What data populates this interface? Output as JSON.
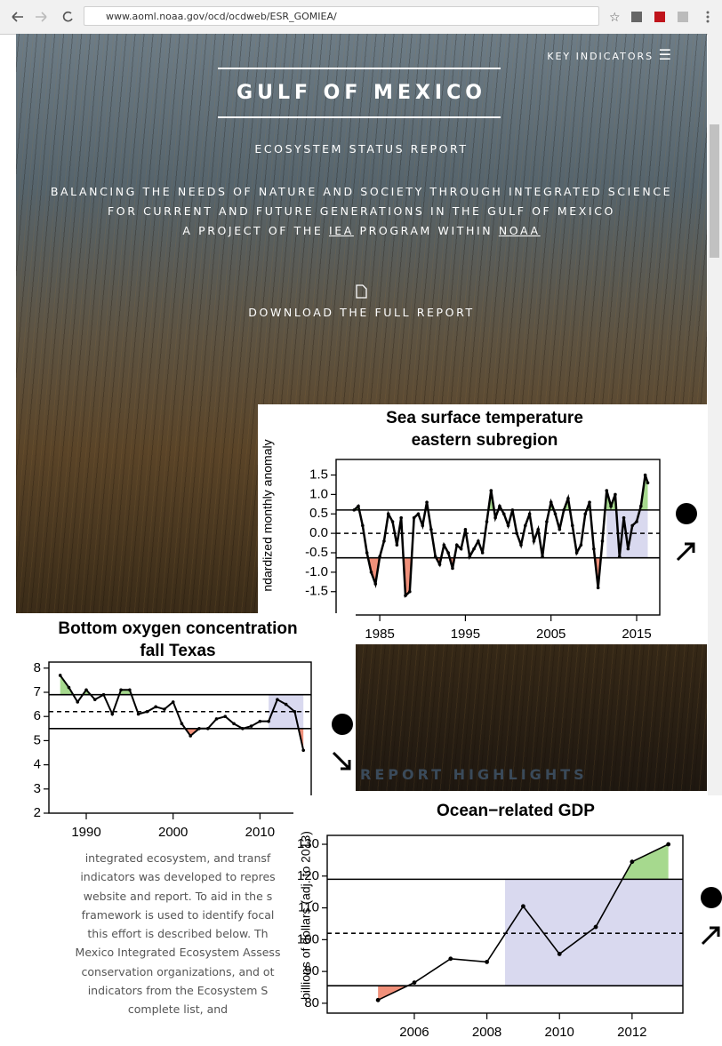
{
  "browser": {
    "url": "www.aoml.noaa.gov/ocd/ocdweb/ESR_GOMIEA/"
  },
  "header": {
    "menu": "KEY INDICATORS",
    "title": "GULF OF MEXICO",
    "subtitle": "ECOSYSTEM STATUS REPORT",
    "tagline": [
      "BALANCING THE NEEDS OF NATURE AND SOCIETY THROUGH INTEGRATED SCIENCE",
      "FOR CURRENT AND FUTURE GENERATIONS IN THE GULF OF MEXICO"
    ],
    "project": {
      "before": "A PROJECT OF THE",
      "iea": "IEA",
      "middle": "PROGRAM WITHIN",
      "noaa": "NOAA"
    },
    "download": "DOWNLOAD THE FULL REPORT"
  },
  "highlights": {
    "title": "REPORT HIGHLIGHTS",
    "lines": [
      "integrated ecosystem, and transf",
      "indicators was developed to repres",
      "website and report. To aid in the s",
      "framework is used to identify focal",
      "this effort is described below. Th",
      "Mexico Integrated Ecosystem Assess",
      "conservation organizations, and ot",
      "indicators from the Ecosystem S",
      "complete list, and"
    ]
  },
  "chart_data": [
    {
      "type": "line",
      "title": [
        "Sea surface temperature",
        "eastern subregion"
      ],
      "ylabel": "ndardized monthly anomaly",
      "x": [
        1982.0,
        1982.5,
        1983.0,
        1983.5,
        1984.0,
        1984.5,
        1985.0,
        1985.5,
        1986.0,
        1986.5,
        1987.0,
        1987.5,
        1988.0,
        1988.5,
        1989.0,
        1989.5,
        1990.0,
        1990.5,
        1991.0,
        1991.5,
        1992.0,
        1992.5,
        1993.0,
        1993.5,
        1994.0,
        1994.5,
        1995.0,
        1995.5,
        1996.0,
        1996.5,
        1997.0,
        1997.5,
        1998.0,
        1998.5,
        1999.0,
        1999.5,
        2000.0,
        2000.5,
        2001.0,
        2001.5,
        2002.0,
        2002.5,
        2003.0,
        2003.5,
        2004.0,
        2004.5,
        2005.0,
        2005.5,
        2006.0,
        2006.5,
        2007.0,
        2007.5,
        2008.0,
        2008.5,
        2009.0,
        2009.5,
        2010.0,
        2010.5,
        2011.0,
        2011.5,
        2012.0,
        2012.5,
        2013.0,
        2013.5,
        2014.0,
        2014.5,
        2015.0,
        2015.5,
        2016.0,
        2016.3
      ],
      "values": [
        0.6,
        0.7,
        0.2,
        -0.5,
        -1.0,
        -1.3,
        -0.6,
        -0.2,
        0.5,
        0.3,
        -0.3,
        0.4,
        -1.6,
        -1.5,
        0.4,
        0.5,
        0.2,
        0.8,
        0.1,
        -0.6,
        -0.8,
        -0.3,
        -0.5,
        -0.9,
        -0.3,
        -0.4,
        0.1,
        -0.6,
        -0.4,
        -0.2,
        -0.5,
        0.3,
        1.1,
        0.4,
        0.7,
        0.5,
        0.2,
        0.6,
        0.0,
        -0.3,
        0.2,
        0.5,
        -0.2,
        0.1,
        -0.6,
        0.3,
        0.8,
        0.5,
        0.1,
        0.6,
        0.9,
        0.2,
        -0.5,
        -0.3,
        0.5,
        0.8,
        -0.4,
        -1.4,
        -0.2,
        1.1,
        0.7,
        1.0,
        -0.6,
        0.4,
        -0.4,
        0.2,
        0.3,
        0.7,
        1.5,
        1.3
      ],
      "xlim": [
        1979.9,
        2017.7
      ],
      "xticks": [
        1985,
        1995,
        2005,
        2015
      ],
      "ylim": [
        -2.1,
        1.9
      ],
      "yticks": [
        {
          "value": -1.5,
          "label": "-1.5"
        },
        {
          "value": -1,
          "label": "-1.0"
        },
        -0.5,
        {
          "value": 0,
          "label": "0.0"
        },
        0.5,
        {
          "value": 1,
          "label": "1.0"
        },
        1.5
      ],
      "upper_threshold": 0.6,
      "mean": 0,
      "lower_threshold": -0.63,
      "trend_window": [
        2011.5,
        2016.3
      ],
      "color": "#000000",
      "band_color": "#d9d9ef",
      "above_color": "#a6d98e",
      "below_color": "#f0907a"
    },
    {
      "type": "line",
      "title": [
        "Bottom oxygen concentration",
        "fall Texas"
      ],
      "x": [
        1987,
        1988,
        1989,
        1990,
        1991,
        1992,
        1993,
        1994,
        1995,
        1996,
        1997,
        1998,
        1999,
        2000,
        2001,
        2002,
        2003,
        2004,
        2005,
        2006,
        2007,
        2008,
        2009,
        2010,
        2011,
        2012,
        2013,
        2014,
        2015
      ],
      "values": [
        7.7,
        7.2,
        6.6,
        7.1,
        6.7,
        6.9,
        6.1,
        7.1,
        7.1,
        6.1,
        6.2,
        6.4,
        6.3,
        6.6,
        5.7,
        5.2,
        5.5,
        5.5,
        5.9,
        6.0,
        5.7,
        5.5,
        5.6,
        5.8,
        5.8,
        6.7,
        6.5,
        6.2,
        4.6
      ],
      "xlim": [
        1985.7,
        2015.9
      ],
      "xticks": [
        1990,
        2000,
        2010
      ],
      "ylim": [
        2,
        8.25
      ],
      "yticks": [
        2,
        3,
        4,
        5,
        6,
        7,
        8
      ],
      "upper_threshold": 6.9,
      "mean": 6.2,
      "lower_threshold": 5.5,
      "trend_window": [
        2011,
        2015
      ],
      "color": "#000000",
      "band_color": "#d9d9ef",
      "above_color": "#a6d98e",
      "below_color": "#f0907a"
    },
    {
      "type": "line",
      "title": [
        "Ocean−related GDP"
      ],
      "ylabel": "billions of dollars (adj. to 2013)",
      "x": [
        2005,
        2006,
        2007,
        2008,
        2009,
        2010,
        2011,
        2012,
        2013
      ],
      "values": [
        81,
        86.5,
        94,
        93,
        110.5,
        95.5,
        104,
        124.5,
        130
      ],
      "xlim": [
        2003.6,
        2013.4
      ],
      "xticks": [
        2006,
        2008,
        2010,
        2012
      ],
      "ylim": [
        76.9,
        132.8
      ],
      "yticks": [
        80,
        90,
        100,
        110,
        120,
        130
      ],
      "upper_threshold": 119,
      "mean": 102,
      "lower_threshold": 85.5,
      "trend_window": [
        2008.5,
        2013.4
      ],
      "color": "#000000",
      "band_color": "#d9d9ef",
      "above_color": "#a6d98e",
      "below_color": "#f0907a"
    }
  ]
}
